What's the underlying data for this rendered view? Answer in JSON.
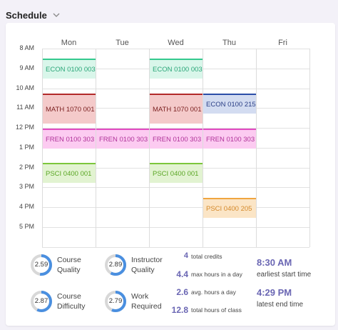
{
  "header": {
    "title": "Schedule"
  },
  "schedule": {
    "days": [
      "Mon",
      "Tue",
      "Wed",
      "Thu",
      "Fri"
    ],
    "times": [
      "8 AM",
      "9 AM",
      "10 AM",
      "11 AM",
      "12 PM",
      "1 PM",
      "2 PM",
      "3 PM",
      "4 PM",
      "5 PM"
    ],
    "events": [
      {
        "label": "ECON 0100 003",
        "day": 0,
        "color": "#34c98e",
        "bg": "#d9f6ea",
        "text": "#2aa678"
      },
      {
        "label": "ECON 0100 003",
        "day": 2,
        "color": "#34c98e",
        "bg": "#d9f6ea",
        "text": "#2aa678"
      },
      {
        "label": "MATH 1070 001",
        "day": 0,
        "color": "#b22a2a",
        "bg": "#f4caca",
        "text": "#7a1f1f"
      },
      {
        "label": "MATH 1070 001",
        "day": 2,
        "color": "#b22a2a",
        "bg": "#f4caca",
        "text": "#7a1f1f"
      },
      {
        "label": "ECON 0100 215",
        "day": 3,
        "color": "#2b4ea8",
        "bg": "#d3dcf1",
        "text": "#2b3f86"
      },
      {
        "label": "FREN 0100 303",
        "day": 0,
        "color": "#e24bc2",
        "bg": "#fccbf1",
        "text": "#b0339a"
      },
      {
        "label": "FREN 0100 303",
        "day": 1,
        "color": "#e24bc2",
        "bg": "#fccbf1",
        "text": "#b0339a"
      },
      {
        "label": "FREN 0100 303",
        "day": 2,
        "color": "#e24bc2",
        "bg": "#fccbf1",
        "text": "#b0339a"
      },
      {
        "label": "FREN 0100 303",
        "day": 3,
        "color": "#e24bc2",
        "bg": "#fccbf1",
        "text": "#b0339a"
      },
      {
        "label": "PSCI 0400 001",
        "day": 0,
        "color": "#7cc63c",
        "bg": "#e2f3d1",
        "text": "#5aa624"
      },
      {
        "label": "PSCI 0400 001",
        "day": 2,
        "color": "#7cc63c",
        "bg": "#e2f3d1",
        "text": "#5aa624"
      },
      {
        "label": "PSCI 0400 205",
        "day": 3,
        "color": "#f0a640",
        "bg": "#fbe5c6",
        "text": "#d4892a"
      }
    ]
  },
  "ratings": [
    {
      "value": "2.59",
      "fraction": 0.52,
      "label1": "Course",
      "label2": "Quality"
    },
    {
      "value": "2.89",
      "fraction": 0.58,
      "label1": "Instructor",
      "label2": "Quality"
    },
    {
      "value": "2.87",
      "fraction": 0.57,
      "label1": "Course",
      "label2": "Difficulty"
    },
    {
      "value": "2.79",
      "fraction": 0.56,
      "label1": "Work",
      "label2": "Required"
    }
  ],
  "summary": [
    {
      "value": "4",
      "label": "total credits"
    },
    {
      "value": "4.4",
      "label": "max hours in a day"
    },
    {
      "value": "2.6",
      "label": "avg. hours a day"
    },
    {
      "value": "12.8",
      "label": "total hours of class"
    }
  ],
  "times_summary": [
    {
      "value": "8:30 AM",
      "label": "earliest start time"
    },
    {
      "value": "4:29 PM",
      "label": "latest end time"
    }
  ],
  "colors": {
    "accent": "#6a66b3",
    "donut_fill": "#4a8fe0",
    "donut_track": "#d8d8d8"
  }
}
